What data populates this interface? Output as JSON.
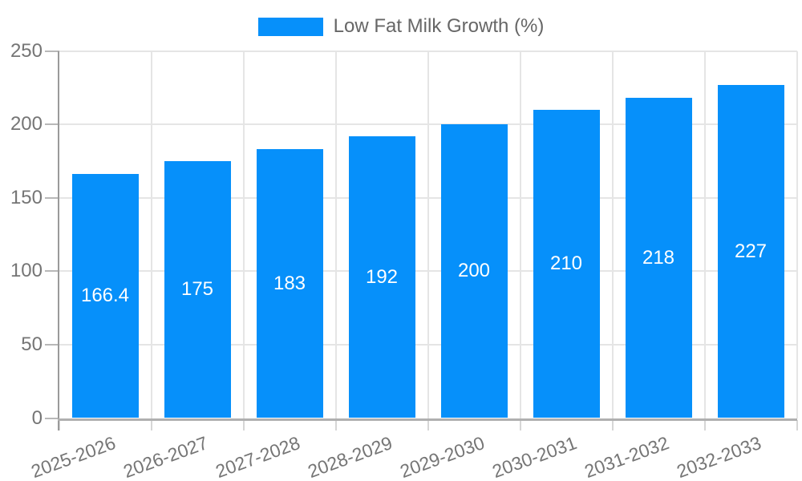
{
  "chart_data": {
    "type": "bar",
    "title": "",
    "categories": [
      "2025-2026",
      "2026-2027",
      "2027-2028",
      "2028-2029",
      "2029-2030",
      "2030-2031",
      "2031-2032",
      "2032-2033"
    ],
    "series": [
      {
        "name": "Low Fat Milk Growth (%)",
        "values": [
          166.4,
          175,
          183,
          192,
          200,
          210,
          218,
          227
        ]
      }
    ],
    "value_labels": [
      "166.4",
      "175",
      "183",
      "192",
      "200",
      "210",
      "218",
      "227"
    ],
    "xlabel": "",
    "ylabel": "",
    "ylim": [
      0,
      250
    ],
    "yticks": [
      0,
      50,
      100,
      150,
      200,
      250
    ],
    "grid": true,
    "legend_position": "top-center",
    "bar_labels": "inside-center",
    "colors": {
      "bar": "#0690FA",
      "grid": "#E5E5E5",
      "axis_y": "#9A9A9A",
      "axis_x": "#B0B0B0",
      "tick_y": "#B8B8B8",
      "tick_x": "#D6D6D6",
      "tick_text": "#757575",
      "legend_text": "#666666",
      "bar_label_text": "#FFFFFF",
      "background": "#FFFFFF"
    }
  }
}
